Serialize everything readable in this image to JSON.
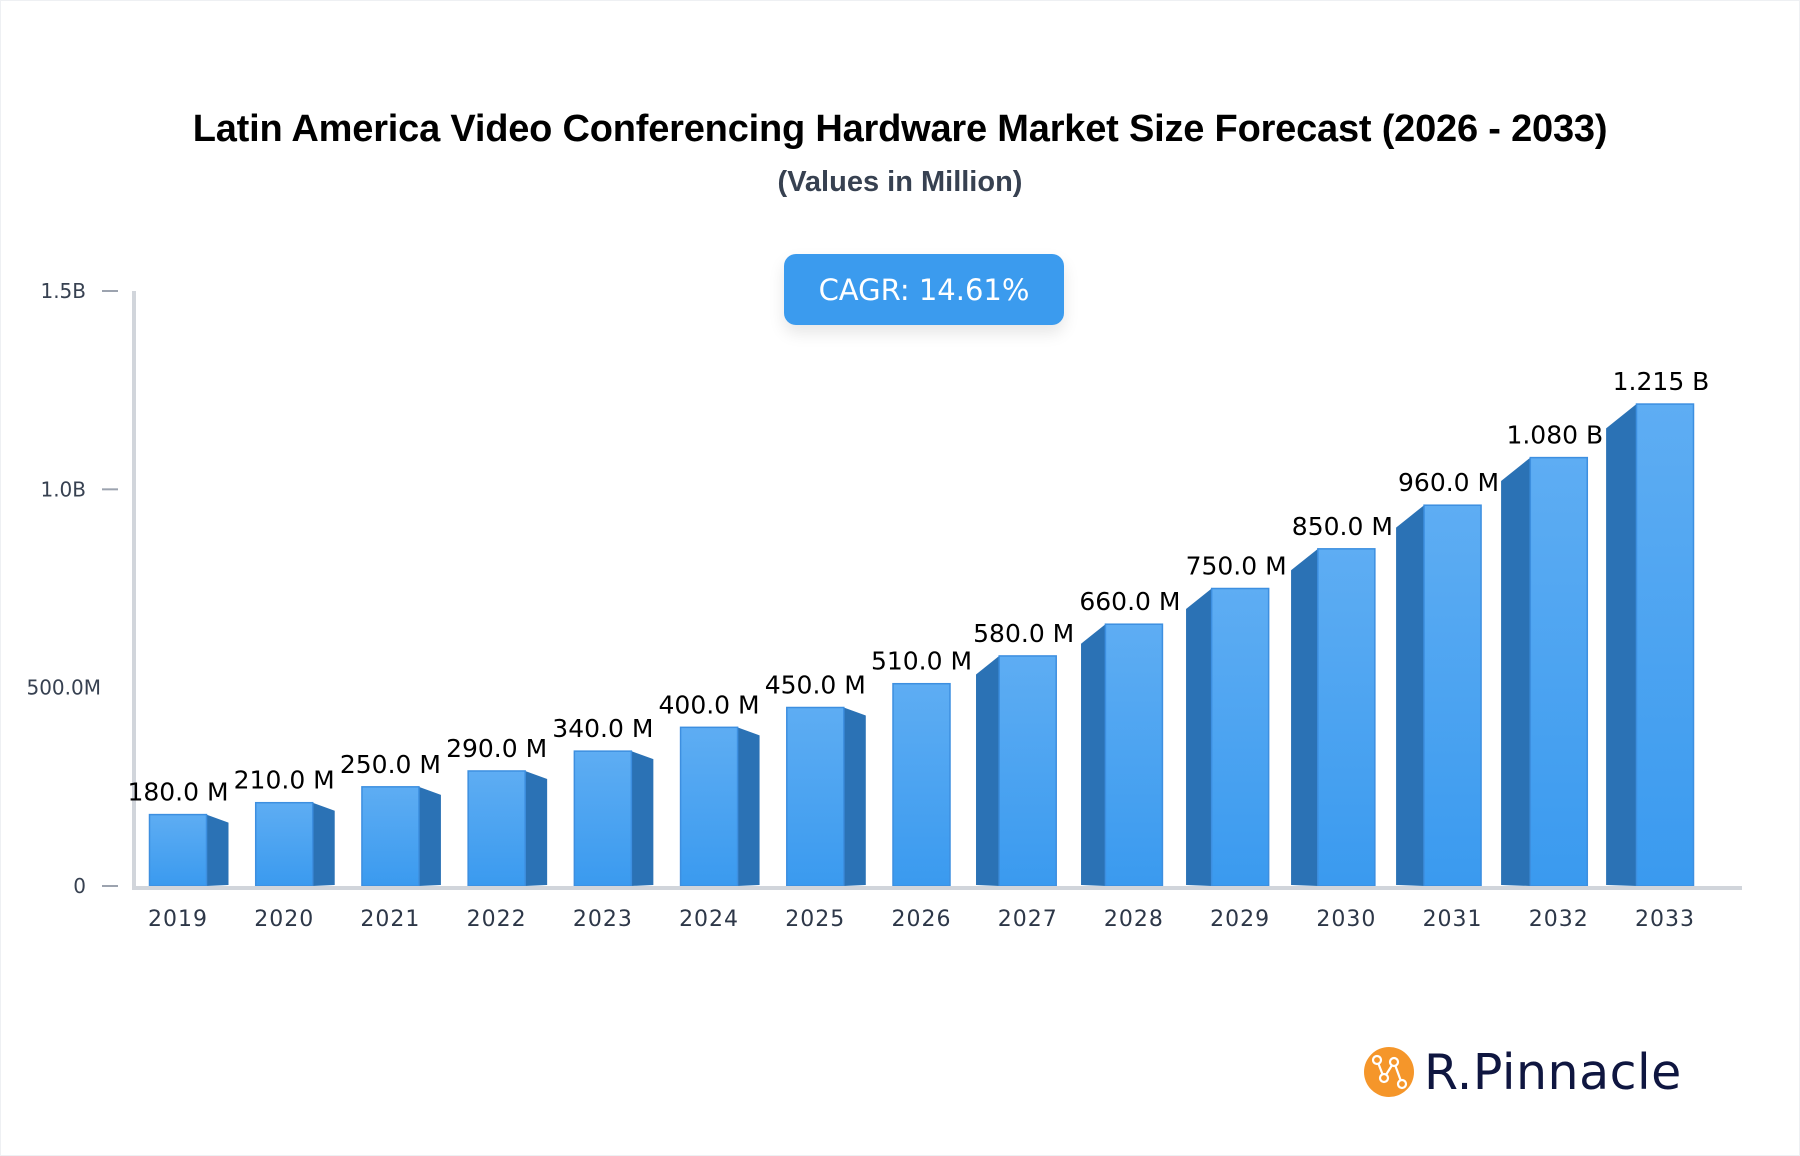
{
  "header": {
    "title": "Latin America Video Conferencing Hardware Market Size Forecast (2026 - 2033)",
    "subtitle": "(Values in Million)"
  },
  "badge": {
    "label": "CAGR: 14.61%"
  },
  "brand": {
    "name": "R.Pinnacle",
    "icon": "chart-network-icon",
    "color": "#f5962a"
  },
  "colors": {
    "bar_face": "#4aa3f1",
    "bar_face_top": "#5eadf3",
    "bar_face_bottom": "#3a9aef",
    "bar_side": "#2b72b5",
    "axis": "#d1d5db",
    "badge": "#3b9bee"
  },
  "chart_data": {
    "type": "bar",
    "title": "Latin America Video Conferencing Hardware Market Size Forecast (2026 - 2033)",
    "subtitle": "(Values in Million)",
    "xlabel": "",
    "ylabel": "",
    "categories": [
      "2019",
      "2020",
      "2021",
      "2022",
      "2023",
      "2024",
      "2025",
      "2026",
      "2027",
      "2028",
      "2029",
      "2030",
      "2031",
      "2032",
      "2033"
    ],
    "values": [
      180,
      210,
      250,
      290,
      340,
      400,
      450,
      510,
      580,
      660,
      750,
      850,
      960,
      1080,
      1215
    ],
    "value_labels": [
      "180.0 M",
      "210.0 M",
      "250.0 M",
      "290.0 M",
      "340.0 M",
      "400.0 M",
      "450.0 M",
      "510.0 M",
      "580.0 M",
      "660.0 M",
      "750.0 M",
      "850.0 M",
      "960.0 M",
      "1.080 B",
      "1.215 B"
    ],
    "unit": "Million",
    "ylim": [
      0,
      1500
    ],
    "yticks": [
      {
        "value": 0,
        "label": "0"
      },
      {
        "value": 500,
        "label": "500.0M"
      },
      {
        "value": 1000,
        "label": "1.0B"
      },
      {
        "value": 1500,
        "label": "1.5B"
      }
    ],
    "grid": false,
    "legend": null,
    "annotations": [
      "CAGR: 14.61%"
    ]
  }
}
